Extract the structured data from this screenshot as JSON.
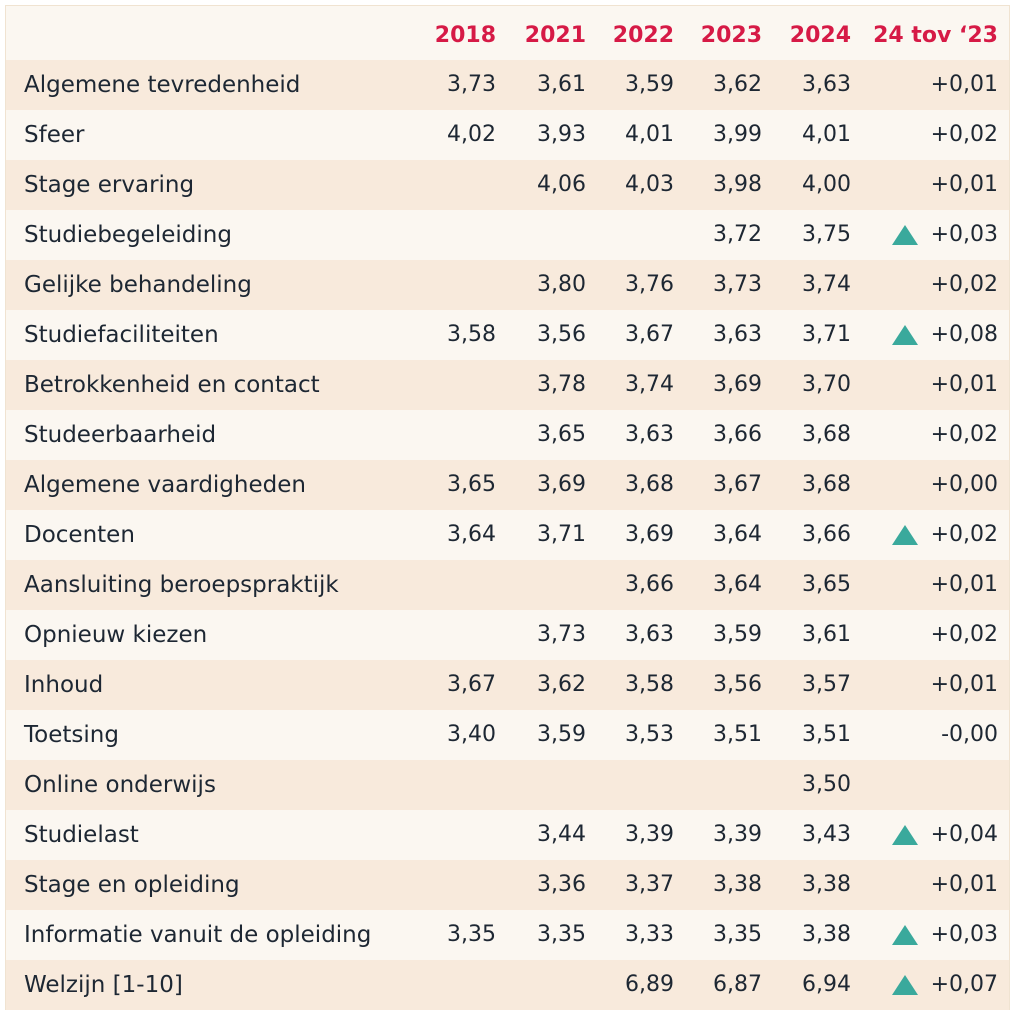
{
  "chart_data": {
    "type": "table",
    "columns": [
      "",
      "2018",
      "2021",
      "2022",
      "2023",
      "2024",
      "24 tov ‘23"
    ],
    "rows": [
      {
        "label": "Algemene tevredenheid",
        "values": [
          "3,73",
          "3,61",
          "3,59",
          "3,62",
          "3,63"
        ],
        "change": "+0,01",
        "up": false
      },
      {
        "label": "Sfeer",
        "values": [
          "4,02",
          "3,93",
          "4,01",
          "3,99",
          "4,01"
        ],
        "change": "+0,02",
        "up": false
      },
      {
        "label": "Stage ervaring",
        "values": [
          "",
          "4,06",
          "4,03",
          "3,98",
          "4,00"
        ],
        "change": "+0,01",
        "up": false
      },
      {
        "label": "Studiebegeleiding",
        "values": [
          "",
          "",
          "",
          "3,72",
          "3,75"
        ],
        "change": "+0,03",
        "up": true
      },
      {
        "label": "Gelijke behandeling",
        "values": [
          "",
          "3,80",
          "3,76",
          "3,73",
          "3,74"
        ],
        "change": "+0,02",
        "up": false
      },
      {
        "label": "Studiefaciliteiten",
        "values": [
          "3,58",
          "3,56",
          "3,67",
          "3,63",
          "3,71"
        ],
        "change": "+0,08",
        "up": true
      },
      {
        "label": "Betrokkenheid en contact",
        "values": [
          "",
          "3,78",
          "3,74",
          "3,69",
          "3,70"
        ],
        "change": "+0,01",
        "up": false
      },
      {
        "label": "Studeerbaarheid",
        "values": [
          "",
          "3,65",
          "3,63",
          "3,66",
          "3,68"
        ],
        "change": "+0,02",
        "up": false
      },
      {
        "label": "Algemene vaardigheden",
        "values": [
          "3,65",
          "3,69",
          "3,68",
          "3,67",
          "3,68"
        ],
        "change": "+0,00",
        "up": false
      },
      {
        "label": "Docenten",
        "values": [
          "3,64",
          "3,71",
          "3,69",
          "3,64",
          "3,66"
        ],
        "change": "+0,02",
        "up": true
      },
      {
        "label": "Aansluiting beroepspraktijk",
        "values": [
          "",
          "",
          "3,66",
          "3,64",
          "3,65"
        ],
        "change": "+0,01",
        "up": false
      },
      {
        "label": "Opnieuw kiezen",
        "values": [
          "",
          "3,73",
          "3,63",
          "3,59",
          "3,61"
        ],
        "change": "+0,02",
        "up": false
      },
      {
        "label": "Inhoud",
        "values": [
          "3,67",
          "3,62",
          "3,58",
          "3,56",
          "3,57"
        ],
        "change": "+0,01",
        "up": false
      },
      {
        "label": "Toetsing",
        "values": [
          "3,40",
          "3,59",
          "3,53",
          "3,51",
          "3,51"
        ],
        "change": "-0,00",
        "up": false
      },
      {
        "label": "Online onderwijs",
        "values": [
          "",
          "",
          "",
          "",
          "3,50"
        ],
        "change": "",
        "up": false
      },
      {
        "label": "Studielast",
        "values": [
          "",
          "3,44",
          "3,39",
          "3,39",
          "3,43"
        ],
        "change": "+0,04",
        "up": true
      },
      {
        "label": "Stage en opleiding",
        "values": [
          "",
          "3,36",
          "3,37",
          "3,38",
          "3,38"
        ],
        "change": "+0,01",
        "up": false
      },
      {
        "label": "Informatie vanuit de opleiding",
        "values": [
          "3,35",
          "3,35",
          "3,33",
          "3,35",
          "3,38"
        ],
        "change": "+0,03",
        "up": true
      },
      {
        "label": "Welzijn [1-10]",
        "values": [
          "",
          "",
          "6,89",
          "6,87",
          "6,94"
        ],
        "change": "+0,07",
        "up": true
      }
    ],
    "colors": {
      "header_text": "#d61a46",
      "row_shaded": "#f8eadc",
      "row_light": "#fbf7f1",
      "up_icon": "#3aa99c",
      "text": "#1d2733"
    }
  }
}
